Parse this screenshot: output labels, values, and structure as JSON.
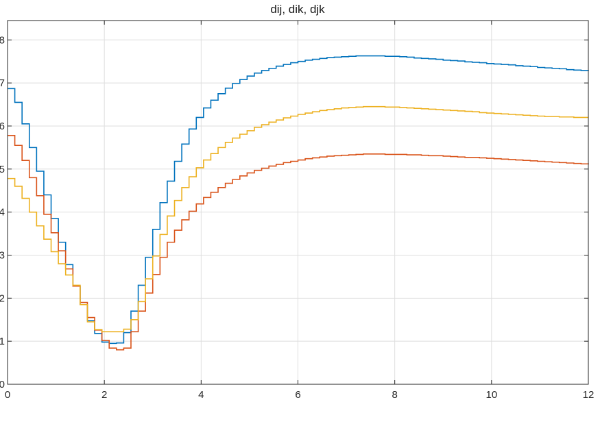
{
  "figure": {
    "background": "#ffffff"
  },
  "chart_data": {
    "type": "line",
    "subtype": "stairs",
    "title": "dij, dik, djk",
    "xlabel": "",
    "ylabel": "",
    "xlim": [
      0,
      12
    ],
    "ylim": [
      0,
      8.45
    ],
    "x_ticks": [
      0,
      2,
      4,
      6,
      8,
      10,
      12
    ],
    "y_ticks": [
      0,
      1,
      2,
      3,
      4,
      5,
      6,
      7,
      8
    ],
    "grid": true,
    "legend": "none",
    "axis_color": "#262626",
    "grid_color": "#dedede",
    "background": "#ffffff",
    "sample_step": 0.15,
    "x": [
      0,
      0.15,
      0.3,
      0.45,
      0.6,
      0.75,
      0.9,
      1.05,
      1.2,
      1.35,
      1.5,
      1.65,
      1.8,
      1.95,
      2.1,
      2.25,
      2.4,
      2.55,
      2.7,
      2.85,
      3,
      3.15,
      3.3,
      3.45,
      3.6,
      3.75,
      3.9,
      4.05,
      4.2,
      4.35,
      4.5,
      4.65,
      4.8,
      4.95,
      5.1,
      5.25,
      5.4,
      5.55,
      5.7,
      5.85,
      6,
      6.15,
      6.3,
      6.45,
      6.6,
      6.75,
      6.9,
      7.05,
      7.2,
      7.35,
      7.5,
      7.65,
      7.8,
      7.95,
      8.1,
      8.25,
      8.4,
      8.55,
      8.7,
      8.85,
      9,
      9.15,
      9.3,
      9.45,
      9.6,
      9.75,
      9.9,
      10.05,
      10.2,
      10.35,
      10.5,
      10.65,
      10.8,
      10.95,
      11.1,
      11.25,
      11.4,
      11.55,
      11.7,
      11.85,
      12
    ],
    "series": [
      {
        "name": "dij",
        "color": "#0072BD",
        "values": [
          6.87,
          6.55,
          6.05,
          5.5,
          4.95,
          4.4,
          3.85,
          3.3,
          2.78,
          2.28,
          1.85,
          1.48,
          1.18,
          0.98,
          0.95,
          0.96,
          1.2,
          1.7,
          2.3,
          2.95,
          3.6,
          4.22,
          4.72,
          5.18,
          5.58,
          5.93,
          6.2,
          6.42,
          6.6,
          6.75,
          6.88,
          6.99,
          7.08,
          7.16,
          7.23,
          7.29,
          7.34,
          7.39,
          7.43,
          7.47,
          7.5,
          7.53,
          7.55,
          7.57,
          7.59,
          7.6,
          7.61,
          7.62,
          7.63,
          7.63,
          7.63,
          7.63,
          7.62,
          7.62,
          7.61,
          7.6,
          7.58,
          7.57,
          7.56,
          7.55,
          7.53,
          7.52,
          7.51,
          7.49,
          7.48,
          7.47,
          7.45,
          7.44,
          7.43,
          7.42,
          7.4,
          7.39,
          7.38,
          7.36,
          7.35,
          7.34,
          7.33,
          7.31,
          7.3,
          7.29,
          7.28
        ]
      },
      {
        "name": "dik",
        "color": "#D95319",
        "values": [
          5.78,
          5.55,
          5.2,
          4.8,
          4.38,
          3.95,
          3.52,
          3.1,
          2.68,
          2.28,
          1.9,
          1.55,
          1.26,
          1.02,
          0.84,
          0.8,
          0.84,
          1.22,
          1.7,
          2.12,
          2.55,
          2.95,
          3.3,
          3.58,
          3.82,
          4.02,
          4.19,
          4.34,
          4.46,
          4.57,
          4.67,
          4.76,
          4.84,
          4.91,
          4.97,
          5.02,
          5.07,
          5.11,
          5.15,
          5.18,
          5.21,
          5.24,
          5.26,
          5.28,
          5.3,
          5.31,
          5.32,
          5.33,
          5.34,
          5.35,
          5.35,
          5.35,
          5.34,
          5.34,
          5.34,
          5.33,
          5.33,
          5.32,
          5.31,
          5.31,
          5.3,
          5.29,
          5.28,
          5.27,
          5.27,
          5.26,
          5.25,
          5.24,
          5.23,
          5.22,
          5.21,
          5.2,
          5.19,
          5.18,
          5.17,
          5.16,
          5.15,
          5.14,
          5.13,
          5.12,
          5.11
        ]
      },
      {
        "name": "djk",
        "color": "#EDB120",
        "values": [
          4.78,
          4.6,
          4.32,
          4.0,
          3.68,
          3.37,
          3.08,
          2.8,
          2.54,
          2.3,
          1.85,
          1.45,
          1.27,
          1.22,
          1.22,
          1.22,
          1.28,
          1.5,
          1.92,
          2.45,
          2.98,
          3.48,
          3.91,
          4.27,
          4.57,
          4.82,
          5.03,
          5.21,
          5.36,
          5.5,
          5.62,
          5.72,
          5.81,
          5.89,
          5.97,
          6.03,
          6.09,
          6.14,
          6.19,
          6.23,
          6.27,
          6.3,
          6.33,
          6.36,
          6.38,
          6.4,
          6.42,
          6.43,
          6.44,
          6.45,
          6.45,
          6.45,
          6.44,
          6.44,
          6.43,
          6.42,
          6.41,
          6.4,
          6.39,
          6.38,
          6.37,
          6.36,
          6.35,
          6.34,
          6.33,
          6.31,
          6.3,
          6.29,
          6.28,
          6.27,
          6.26,
          6.25,
          6.24,
          6.23,
          6.22,
          6.22,
          6.21,
          6.21,
          6.2,
          6.2,
          6.2
        ]
      }
    ]
  }
}
